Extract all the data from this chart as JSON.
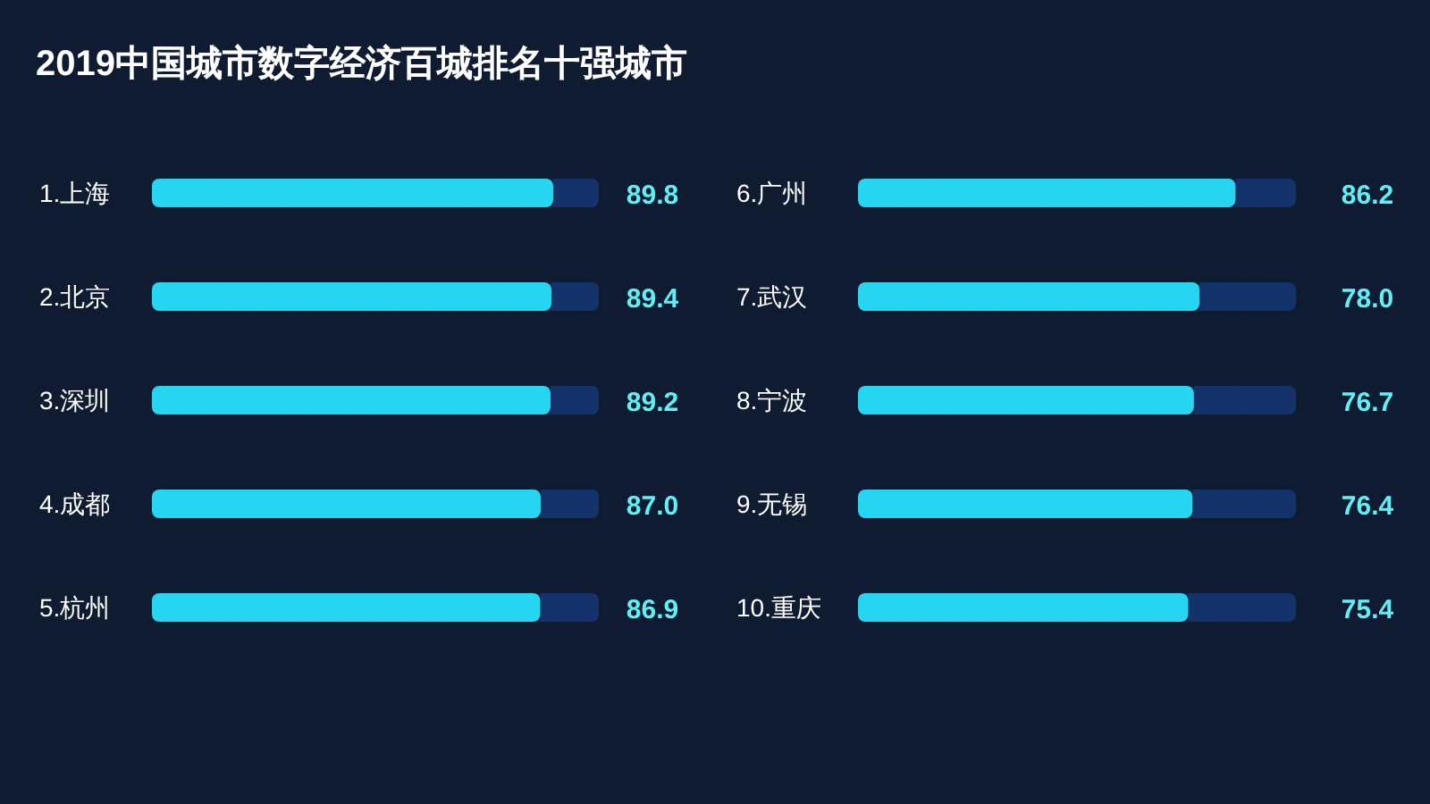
{
  "chart_data": [
    {
      "type": "bar",
      "orientation": "horizontal",
      "title": "2019中国城市数字经济百城排名十强城市",
      "categories": [
        "1.上海",
        "2.北京",
        "3.深圳",
        "4.成都",
        "5.杭州"
      ],
      "values": [
        89.8,
        89.4,
        89.2,
        87.0,
        86.9
      ],
      "color": "#26d6f0",
      "xlim": [
        0,
        100
      ],
      "data_labels": true,
      "value_labels": [
        "89.8",
        "89.4",
        "89.2",
        "87.0",
        "86.9"
      ]
    },
    {
      "type": "bar",
      "orientation": "horizontal",
      "categories": [
        "6.广州",
        "7.武汉",
        "8.宁波",
        "9.无锡",
        "10.重庆"
      ],
      "values": [
        86.2,
        78.0,
        76.7,
        76.4,
        75.4
      ],
      "color": "#26d6f0",
      "xlim": [
        0,
        100
      ],
      "data_labels": true,
      "value_labels": [
        "86.2",
        "78.0",
        "76.7",
        "76.4",
        "75.4"
      ]
    }
  ]
}
